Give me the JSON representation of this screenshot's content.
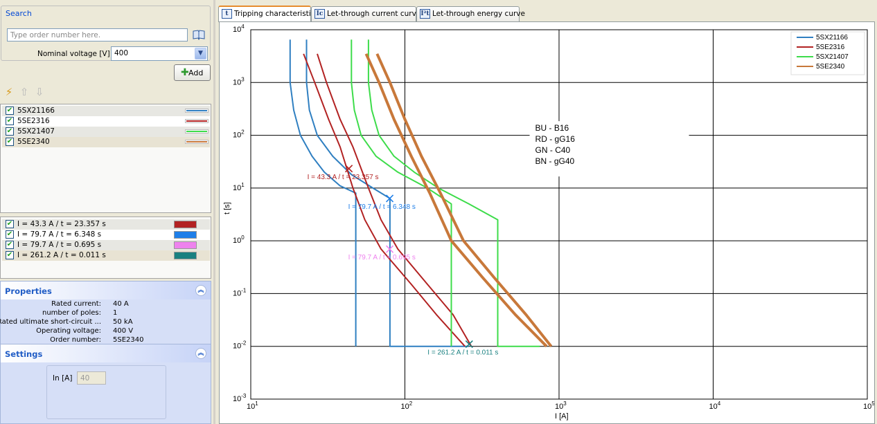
{
  "search": {
    "title": "Search",
    "placeholder": "Type order number here.",
    "voltage_label": "Nominal voltage [V]",
    "voltage_value": "400"
  },
  "add_button": {
    "label": "Add"
  },
  "products": [
    {
      "label": "5SX21166",
      "color": "#2f7fc1",
      "checked": true
    },
    {
      "label": "5SE2316",
      "color": "#b22222",
      "checked": true
    },
    {
      "label": "5SX21407",
      "color": "#3ddc4a",
      "checked": true
    },
    {
      "label": "5SE2340",
      "color": "#c8783a",
      "checked": true
    }
  ],
  "markers": [
    {
      "label": "I = 43.3 A  /  t = 23.357 s",
      "color": "#b22222",
      "current": 43.3,
      "time": 23.357
    },
    {
      "label": "I = 79.7 A  /  t = 6.348 s",
      "color": "#1e7ee8",
      "current": 79.7,
      "time": 6.348
    },
    {
      "label": "I = 79.7 A  /  t = 0.695 s",
      "color": "#ee82ee",
      "current": 79.7,
      "time": 0.695
    },
    {
      "label": "I = 261.2 A  /  t = 0.011 s",
      "color": "#1a8080",
      "current": 261.2,
      "time": 0.011
    }
  ],
  "properties": {
    "title": "Properties",
    "rows": [
      {
        "key": "Rated current:",
        "value": "40 A"
      },
      {
        "key": "number of poles:",
        "value": "1"
      },
      {
        "key": "Rated ultimate short-circuit ...",
        "value": "50 kA"
      },
      {
        "key": "Operating voltage:",
        "value": "400 V"
      },
      {
        "key": "Order number:",
        "value": "5SE2340"
      }
    ]
  },
  "settings": {
    "title": "Settings",
    "in_label": "In [A]",
    "in_value": "40"
  },
  "tabs": [
    {
      "label": "Tripping characteristic",
      "icon": "t",
      "active": true
    },
    {
      "label": "Let-through current curve",
      "icon": "Ic",
      "active": false
    },
    {
      "label": "Let-through energy curve",
      "icon": "I²t",
      "active": false
    }
  ],
  "chart_data": {
    "type": "line",
    "x_scale": "log",
    "y_scale": "log",
    "xlim": [
      10,
      100000
    ],
    "ylim": [
      0.001,
      10000
    ],
    "xlabel": "I [A]",
    "ylabel": "t [s]",
    "grid": true,
    "legend_position": "top-right",
    "x_ticks": [
      {
        "base": "10",
        "exp": "1"
      },
      {
        "base": "10",
        "exp": "2"
      },
      {
        "base": "10",
        "exp": "3"
      },
      {
        "base": "10",
        "exp": "4"
      },
      {
        "base": "10",
        "exp": "5"
      }
    ],
    "y_ticks": [
      {
        "base": "10",
        "exp": "4"
      },
      {
        "base": "10",
        "exp": "3"
      },
      {
        "base": "10",
        "exp": "2"
      },
      {
        "base": "10",
        "exp": "1"
      },
      {
        "base": "10",
        "exp": "0"
      },
      {
        "base": "10",
        "exp": "-1"
      },
      {
        "base": "10",
        "exp": "-2"
      },
      {
        "base": "10",
        "exp": "-3"
      }
    ],
    "annotation_lines": [
      "BU - B16",
      "RD - gG16",
      "GN - C40",
      "BN - gG40"
    ],
    "series": [
      {
        "name": "5SX21166",
        "color": "#2f7fc1",
        "width": 2,
        "bands": [
          [
            [
              18,
              6500
            ],
            [
              18,
              1000
            ],
            [
              19,
              300
            ],
            [
              21,
              100
            ],
            [
              25,
              40
            ],
            [
              30,
              20
            ],
            [
              38,
              11
            ],
            [
              48,
              8
            ],
            [
              48,
              0.01
            ]
          ],
          [
            [
              23,
              6500
            ],
            [
              23,
              1000
            ],
            [
              24,
              300
            ],
            [
              27,
              100
            ],
            [
              34,
              40
            ],
            [
              45,
              18
            ],
            [
              62,
              10
            ],
            [
              80,
              6.348
            ],
            [
              80,
              0.01
            ],
            [
              260,
              0.01
            ]
          ]
        ]
      },
      {
        "name": "5SE2316",
        "color": "#b22222",
        "width": 2,
        "bands": [
          [
            [
              22,
              3500
            ],
            [
              26,
              1000
            ],
            [
              32,
              200
            ],
            [
              38,
              60
            ],
            [
              46,
              10
            ],
            [
              55,
              2.5
            ],
            [
              70,
              0.7
            ],
            [
              110,
              0.15
            ],
            [
              160,
              0.04
            ],
            [
              245,
              0.01
            ]
          ],
          [
            [
              27,
              3500
            ],
            [
              31,
              1000
            ],
            [
              38,
              200
            ],
            [
              46,
              60
            ],
            [
              58,
              10
            ],
            [
              70,
              2.5
            ],
            [
              90,
              0.7
            ],
            [
              140,
              0.15
            ],
            [
              205,
              0.04
            ],
            [
              270,
              0.01
            ]
          ]
        ]
      },
      {
        "name": "5SX21407",
        "color": "#3ddc4a",
        "width": 2,
        "bands": [
          [
            [
              45,
              6500
            ],
            [
              45,
              1000
            ],
            [
              47,
              300
            ],
            [
              52,
              100
            ],
            [
              65,
              40
            ],
            [
              90,
              20
            ],
            [
              140,
              10
            ],
            [
              200,
              5
            ],
            [
              200,
              0.01
            ]
          ],
          [
            [
              58,
              6500
            ],
            [
              58,
              1000
            ],
            [
              61,
              300
            ],
            [
              68,
              100
            ],
            [
              85,
              40
            ],
            [
              115,
              20
            ],
            [
              165,
              10
            ],
            [
              260,
              5
            ],
            [
              400,
              2.5
            ],
            [
              400,
              0.01
            ],
            [
              750,
              0.01
            ]
          ]
        ]
      },
      {
        "name": "5SE2340",
        "color": "#c8783a",
        "width": 4,
        "bands": [
          [
            [
              56,
              3500
            ],
            [
              68,
              1000
            ],
            [
              85,
              200
            ],
            [
              110,
              40
            ],
            [
              145,
              8
            ],
            [
              200,
              1
            ],
            [
              320,
              0.2
            ],
            [
              520,
              0.04
            ],
            [
              830,
              0.01
            ]
          ],
          [
            [
              66,
              3500
            ],
            [
              80,
              1000
            ],
            [
              100,
              200
            ],
            [
              128,
              40
            ],
            [
              170,
              8
            ],
            [
              240,
              1
            ],
            [
              380,
              0.2
            ],
            [
              610,
              0.04
            ],
            [
              890,
              0.01
            ]
          ]
        ]
      }
    ],
    "point_markers": [
      {
        "current": 43.3,
        "time": 23.357,
        "color": "#b22222",
        "label": "I = 43.3 A  /  t = 23.357 s",
        "label_anchor": "below-left"
      },
      {
        "current": 79.7,
        "time": 6.348,
        "color": "#1e7ee8",
        "label": "I = 79.7 A  /  t = 6.348 s",
        "label_anchor": "below-left"
      },
      {
        "current": 79.7,
        "time": 0.695,
        "color": "#ee82ee",
        "label": "I = 79.7 A  /  t = 0.695 s",
        "label_anchor": "below-left"
      },
      {
        "current": 261.2,
        "time": 0.011,
        "color": "#1a8080",
        "label": "I = 261.2 A  /  t = 0.011 s",
        "label_anchor": "below-left"
      }
    ]
  }
}
